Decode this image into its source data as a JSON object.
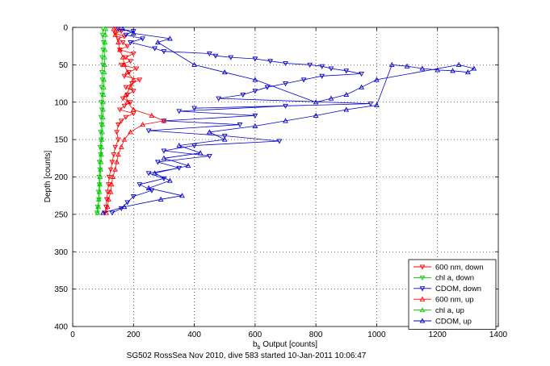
{
  "chart_data": {
    "type": "scatter",
    "xlabel_base": "b",
    "xlabel_sub": "b",
    "xlabel_rest": " Output [counts]",
    "ylabel": "Depth [counts]",
    "caption": "SG502 RossSea Nov 2010, dive 583 started 10-Jan-2011 10:06:47",
    "xlim": [
      0,
      1400
    ],
    "ylim": [
      0,
      400
    ],
    "y_reversed": true,
    "grid": true,
    "legend_position": "bottom-right",
    "xticks": [
      0,
      200,
      400,
      600,
      800,
      1000,
      1200,
      1400
    ],
    "yticks": [
      0,
      50,
      100,
      150,
      200,
      250,
      300,
      350,
      400
    ],
    "series": [
      {
        "name": "600 nm, down",
        "color": "#ff0000",
        "marker": "triangle-down",
        "points": [
          [
            145,
            2
          ],
          [
            160,
            5
          ],
          [
            140,
            8
          ],
          [
            170,
            12
          ],
          [
            150,
            15
          ],
          [
            165,
            20
          ],
          [
            180,
            25
          ],
          [
            155,
            30
          ],
          [
            200,
            35
          ],
          [
            175,
            40
          ],
          [
            190,
            45
          ],
          [
            160,
            50
          ],
          [
            210,
            55
          ],
          [
            185,
            60
          ],
          [
            170,
            65
          ],
          [
            220,
            70
          ],
          [
            195,
            75
          ],
          [
            175,
            80
          ],
          [
            200,
            85
          ],
          [
            180,
            90
          ],
          [
            165,
            95
          ],
          [
            190,
            100
          ],
          [
            170,
            105
          ],
          [
            155,
            110
          ],
          [
            200,
            115
          ],
          [
            175,
            120
          ],
          [
            160,
            125
          ],
          [
            150,
            130
          ],
          [
            145,
            140
          ],
          [
            150,
            150
          ],
          [
            140,
            160
          ],
          [
            135,
            170
          ],
          [
            130,
            180
          ],
          [
            125,
            190
          ],
          [
            120,
            200
          ],
          [
            118,
            210
          ],
          [
            115,
            220
          ],
          [
            112,
            230
          ],
          [
            110,
            240
          ],
          [
            105,
            248
          ]
        ]
      },
      {
        "name": "chl a, down",
        "color": "#00cc00",
        "marker": "triangle-down",
        "points": [
          [
            100,
            2
          ],
          [
            98,
            10
          ],
          [
            102,
            20
          ],
          [
            100,
            30
          ],
          [
            97,
            40
          ],
          [
            99,
            50
          ],
          [
            96,
            60
          ],
          [
            98,
            70
          ],
          [
            95,
            80
          ],
          [
            97,
            90
          ],
          [
            94,
            100
          ],
          [
            96,
            110
          ],
          [
            93,
            120
          ],
          [
            95,
            130
          ],
          [
            92,
            140
          ],
          [
            94,
            150
          ],
          [
            90,
            160
          ],
          [
            92,
            170
          ],
          [
            88,
            180
          ],
          [
            90,
            190
          ],
          [
            87,
            200
          ],
          [
            88,
            210
          ],
          [
            85,
            220
          ],
          [
            86,
            230
          ],
          [
            82,
            240
          ],
          [
            80,
            248
          ]
        ]
      },
      {
        "name": "CDOM, down",
        "color": "#0000cc",
        "marker": "triangle-down",
        "points": [
          [
            150,
            2
          ],
          [
            200,
            5
          ],
          [
            175,
            10
          ],
          [
            230,
            15
          ],
          [
            190,
            20
          ],
          [
            270,
            28
          ],
          [
            300,
            32
          ],
          [
            450,
            35
          ],
          [
            470,
            38
          ],
          [
            520,
            40
          ],
          [
            600,
            42
          ],
          [
            650,
            45
          ],
          [
            700,
            48
          ],
          [
            780,
            50
          ],
          [
            820,
            52
          ],
          [
            850,
            55
          ],
          [
            900,
            58
          ],
          [
            950,
            62
          ],
          [
            820,
            65
          ],
          [
            760,
            70
          ],
          [
            700,
            75
          ],
          [
            640,
            80
          ],
          [
            600,
            85
          ],
          [
            560,
            90
          ],
          [
            480,
            95
          ],
          [
            980,
            102
          ],
          [
            400,
            108
          ],
          [
            700,
            105
          ],
          [
            350,
            112
          ],
          [
            600,
            118
          ],
          [
            300,
            125
          ],
          [
            550,
            130
          ],
          [
            250,
            138
          ],
          [
            500,
            145
          ],
          [
            680,
            152
          ],
          [
            400,
            158
          ],
          [
            300,
            165
          ],
          [
            450,
            172
          ],
          [
            280,
            180
          ],
          [
            350,
            188
          ],
          [
            250,
            195
          ],
          [
            300,
            202
          ],
          [
            220,
            210
          ],
          [
            260,
            218
          ],
          [
            200,
            226
          ],
          [
            180,
            234
          ],
          [
            160,
            242
          ],
          [
            130,
            248
          ]
        ]
      },
      {
        "name": "600 nm, up",
        "color": "#ff0000",
        "marker": "triangle-up",
        "points": [
          [
            110,
            248
          ],
          [
            115,
            240
          ],
          [
            118,
            230
          ],
          [
            125,
            220
          ],
          [
            128,
            210
          ],
          [
            132,
            200
          ],
          [
            140,
            190
          ],
          [
            145,
            180
          ],
          [
            150,
            170
          ],
          [
            160,
            160
          ],
          [
            170,
            150
          ],
          [
            190,
            140
          ],
          [
            230,
            130
          ],
          [
            300,
            125
          ],
          [
            260,
            118
          ],
          [
            200,
            110
          ],
          [
            180,
            100
          ],
          [
            175,
            90
          ],
          [
            190,
            80
          ],
          [
            200,
            70
          ],
          [
            180,
            60
          ],
          [
            170,
            50
          ],
          [
            165,
            40
          ],
          [
            155,
            30
          ],
          [
            150,
            20
          ],
          [
            140,
            10
          ],
          [
            135,
            2
          ]
        ]
      },
      {
        "name": "chl a, up",
        "color": "#00cc00",
        "marker": "triangle-up",
        "points": [
          [
            82,
            248
          ],
          [
            84,
            240
          ],
          [
            86,
            230
          ],
          [
            88,
            220
          ],
          [
            89,
            210
          ],
          [
            90,
            200
          ],
          [
            92,
            190
          ],
          [
            93,
            180
          ],
          [
            94,
            170
          ],
          [
            95,
            160
          ],
          [
            96,
            150
          ],
          [
            97,
            140
          ],
          [
            98,
            130
          ],
          [
            99,
            120
          ],
          [
            100,
            110
          ],
          [
            100,
            100
          ],
          [
            101,
            90
          ],
          [
            102,
            80
          ],
          [
            103,
            70
          ],
          [
            104,
            60
          ],
          [
            105,
            50
          ],
          [
            105,
            40
          ],
          [
            106,
            30
          ],
          [
            106,
            20
          ],
          [
            107,
            10
          ],
          [
            108,
            2
          ]
        ]
      },
      {
        "name": "CDOM, up",
        "color": "#0000cc",
        "marker": "triangle-up",
        "points": [
          [
            100,
            248
          ],
          [
            170,
            240
          ],
          [
            290,
            230
          ],
          [
            360,
            225
          ],
          [
            250,
            215
          ],
          [
            320,
            205
          ],
          [
            270,
            195
          ],
          [
            380,
            185
          ],
          [
            300,
            175
          ],
          [
            420,
            168
          ],
          [
            350,
            158
          ],
          [
            500,
            150
          ],
          [
            450,
            140
          ],
          [
            600,
            132
          ],
          [
            700,
            125
          ],
          [
            800,
            118
          ],
          [
            900,
            110
          ],
          [
            1000,
            104
          ],
          [
            1050,
            50
          ],
          [
            1100,
            52
          ],
          [
            1150,
            55
          ],
          [
            1200,
            57
          ],
          [
            1250,
            58
          ],
          [
            1300,
            60
          ],
          [
            1320,
            55
          ],
          [
            1270,
            50
          ],
          [
            1000,
            70
          ],
          [
            950,
            80
          ],
          [
            900,
            90
          ],
          [
            850,
            95
          ],
          [
            800,
            100
          ],
          [
            600,
            70
          ],
          [
            500,
            60
          ],
          [
            400,
            50
          ],
          [
            280,
            20
          ],
          [
            320,
            15
          ],
          [
            200,
            8
          ],
          [
            165,
            2
          ]
        ]
      }
    ]
  }
}
